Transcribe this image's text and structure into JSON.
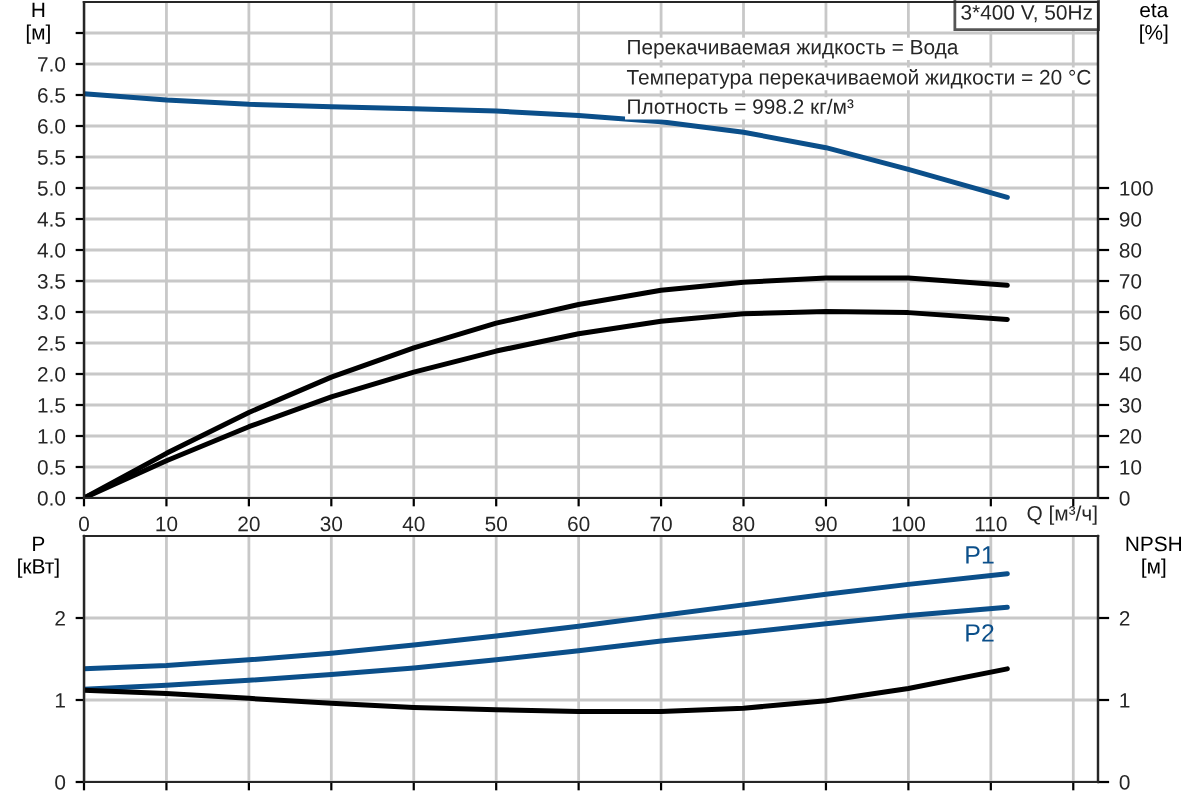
{
  "chart_data": [
    {
      "type": "line",
      "title": "3*400 V, 50Hz",
      "xlabel": "Q [м³/ч]",
      "ylabel": "H\n[м]",
      "y2label": "eta\n[%]",
      "annotations": [
        "Перекачиваемая жидкость = Вода",
        "Температура перекачиваемой жидкости = 20 °C",
        "Плотность = 998.2 кг/м³"
      ],
      "x": [
        0,
        10,
        20,
        30,
        40,
        50,
        60,
        70,
        80,
        90,
        100,
        112
      ],
      "series": [
        {
          "color": "#0b4f8a",
          "values": [
            6.52,
            6.42,
            6.35,
            6.31,
            6.28,
            6.24,
            6.17,
            6.07,
            5.9,
            5.65,
            5.3,
            4.85
          ]
        },
        {
          "color": "#000000",
          "axis": "y2",
          "values": [
            0,
            14.4,
            27.6,
            39,
            48.4,
            56.4,
            62.4,
            67,
            69.6,
            71,
            71,
            68.6
          ]
        },
        {
          "color": "#000000",
          "axis": "y2",
          "values": [
            0,
            12,
            23,
            32.6,
            40.6,
            47.4,
            53,
            57,
            59.4,
            60.2,
            59.8,
            57.6
          ]
        }
      ],
      "xlim": [
        0,
        123
      ],
      "xticks": [
        0,
        10,
        20,
        30,
        40,
        50,
        60,
        70,
        80,
        90,
        100,
        110,
        {
          "value": 120,
          "label": null
        }
      ],
      "ylim": [
        0,
        8
      ],
      "yticks": [
        {
          "value": 0,
          "label": "0.0"
        },
        0.5,
        {
          "value": 1,
          "label": "1.0"
        },
        1.5,
        {
          "value": 2,
          "label": "2.0"
        },
        2.5,
        {
          "value": 3,
          "label": "3.0"
        },
        3.5,
        {
          "value": 4,
          "label": "4.0"
        },
        4.5,
        {
          "value": 5,
          "label": "5.0"
        },
        5.5,
        {
          "value": 6,
          "label": "6.0"
        },
        6.5,
        {
          "value": 7,
          "label": "7.0"
        },
        {
          "value": 7.5,
          "label": null
        }
      ],
      "y2lim": [
        0,
        160
      ],
      "y2ticks": [
        0,
        10,
        20,
        30,
        40,
        50,
        60,
        70,
        80,
        90,
        100
      ],
      "grid": true
    },
    {
      "type": "line",
      "ylabel": "P\n[кВт]",
      "y2label": "NPSH\n[м]",
      "x": [
        0,
        10,
        20,
        30,
        40,
        50,
        60,
        70,
        80,
        90,
        100,
        112
      ],
      "series": [
        {
          "name": "P1",
          "color": "#0b4f8a",
          "values": [
            1.38,
            1.42,
            1.49,
            1.57,
            1.67,
            1.78,
            1.9,
            2.03,
            2.16,
            2.29,
            2.41,
            2.54
          ]
        },
        {
          "name": "P2",
          "color": "#0b4f8a",
          "values": [
            1.13,
            1.18,
            1.24,
            1.31,
            1.39,
            1.49,
            1.6,
            1.72,
            1.82,
            1.93,
            2.03,
            2.13
          ]
        },
        {
          "color": "#000000",
          "axis": "y2",
          "values": [
            1.12,
            1.08,
            1.02,
            0.96,
            0.91,
            0.88,
            0.86,
            0.86,
            0.9,
            0.99,
            1.14,
            1.38
          ]
        }
      ],
      "xlim": [
        0,
        123
      ],
      "xticks": [
        0,
        10,
        20,
        30,
        40,
        50,
        60,
        70,
        80,
        90,
        100,
        110,
        {
          "value": 120,
          "label": null
        }
      ],
      "ylim": [
        0,
        3
      ],
      "yticks": [
        0,
        1,
        2
      ],
      "y2lim": [
        0,
        3
      ],
      "y2ticks": [
        0,
        1,
        2
      ],
      "tick_labels": "y",
      "grid": true
    }
  ]
}
